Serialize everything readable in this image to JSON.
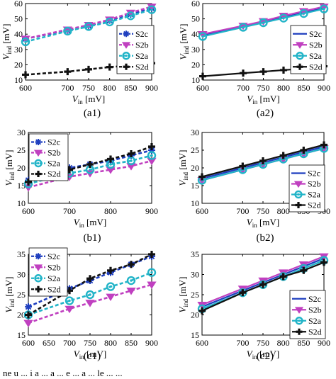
{
  "figure": {
    "panels": [
      "a1",
      "a2",
      "b1",
      "b2",
      "c1",
      "c2"
    ],
    "bottom_caption": "ne u ... i a ... a ... e ... a ... le ... ..."
  },
  "chart_data": [
    {
      "id": "a1",
      "caption": "(a1)",
      "type": "line",
      "x": [
        600,
        700,
        750,
        800,
        850,
        900
      ],
      "xlim": [
        600,
        900
      ],
      "ylim": [
        10,
        60
      ],
      "xticks": [
        600,
        700,
        750,
        800,
        850,
        900
      ],
      "yticks": [
        10,
        20,
        30,
        40,
        50,
        60
      ],
      "xlabel": {
        "main": "V",
        "sub": "in",
        "unit": " [mV]"
      },
      "ylabel": {
        "main": "V",
        "sub": "ind",
        "unit": " [mV]"
      },
      "style": "dashed",
      "grid": false,
      "legend_position": "right",
      "series": [
        {
          "name": "S2c",
          "color": "#1f3fbf",
          "marker": "asterisk",
          "values": [
            37,
            42.5,
            45.5,
            49,
            53,
            57
          ]
        },
        {
          "name": "S2b",
          "color": "#c040c0",
          "marker": "triangle-down",
          "values": [
            37,
            43,
            46,
            49.5,
            54,
            58
          ]
        },
        {
          "name": "S2a",
          "color": "#22b4c8",
          "marker": "circle",
          "values": [
            35,
            42,
            45,
            48,
            52,
            56
          ]
        },
        {
          "name": "S2d",
          "color": "#111111",
          "marker": "plus",
          "values": [
            13.5,
            15.5,
            17,
            18.5,
            19.5,
            21
          ]
        }
      ]
    },
    {
      "id": "a2",
      "caption": "(a2)",
      "type": "line",
      "x": [
        600,
        700,
        750,
        800,
        850,
        900
      ],
      "xlim": [
        600,
        900
      ],
      "ylim": [
        10,
        60
      ],
      "xticks": [
        600,
        700,
        750,
        800,
        850,
        900
      ],
      "yticks": [
        10,
        20,
        30,
        40,
        50,
        60
      ],
      "xlabel": {
        "main": "V",
        "sub": "in",
        "unit": " [mV]"
      },
      "ylabel": {
        "main": "V",
        "sub": "ind",
        "unit": " [mV]"
      },
      "style": "solid",
      "grid": false,
      "legend_position": "right",
      "series": [
        {
          "name": "S2c",
          "color": "#1f3fbf",
          "marker": "none",
          "values": [
            39,
            45,
            48,
            51,
            54,
            57
          ]
        },
        {
          "name": "S2b",
          "color": "#c040c0",
          "marker": "triangle-down",
          "values": [
            40,
            45.5,
            48.5,
            52,
            55,
            58
          ]
        },
        {
          "name": "S2a",
          "color": "#22b4c8",
          "marker": "circle",
          "values": [
            38.5,
            44.5,
            47.5,
            50.5,
            53.5,
            56.5
          ]
        },
        {
          "name": "S2d",
          "color": "#111111",
          "marker": "plus",
          "values": [
            12.5,
            14.5,
            15.5,
            16.5,
            17.5,
            19
          ]
        }
      ]
    },
    {
      "id": "b1",
      "caption": "(b1)",
      "type": "line",
      "x": [
        600,
        700,
        750,
        800,
        850,
        900
      ],
      "xlim": [
        600,
        900
      ],
      "ylim": [
        10,
        30
      ],
      "xticks": [
        600,
        700,
        800,
        900
      ],
      "yticks": [
        10,
        15,
        20,
        25,
        30
      ],
      "xlabel": {
        "main": "V",
        "sub": "in",
        "unit": " [mV]"
      },
      "ylabel": {
        "main": "V",
        "sub": "ind",
        "unit": " [mV]"
      },
      "style": "dashed",
      "grid": false,
      "legend_position": "top-left",
      "series": [
        {
          "name": "S2c",
          "color": "#1f3fbf",
          "marker": "asterisk",
          "values": [
            16.5,
            20,
            21,
            22,
            23.5,
            25
          ]
        },
        {
          "name": "S2b",
          "color": "#c040c0",
          "marker": "triangle-down",
          "values": [
            14.5,
            17.5,
            18.5,
            19.5,
            20.5,
            22
          ]
        },
        {
          "name": "S2a",
          "color": "#22b4c8",
          "marker": "circle",
          "values": [
            15.5,
            18.5,
            19.5,
            21,
            22,
            23.5
          ]
        },
        {
          "name": "S2d",
          "color": "#111111",
          "marker": "plus",
          "values": [
            16,
            19.5,
            21,
            22.5,
            24,
            26
          ]
        }
      ]
    },
    {
      "id": "b2",
      "caption": "(b2)",
      "type": "line",
      "x": [
        600,
        700,
        750,
        800,
        850,
        900
      ],
      "xlim": [
        600,
        900
      ],
      "ylim": [
        10,
        30
      ],
      "xticks": [
        600,
        700,
        750,
        800,
        850,
        900
      ],
      "yticks": [
        10,
        15,
        20,
        25,
        30
      ],
      "xlabel": {
        "main": "V",
        "sub": "in",
        "unit": " [mV]"
      },
      "ylabel": {
        "main": "V",
        "sub": "ind",
        "unit": " [mV]"
      },
      "style": "solid",
      "grid": false,
      "legend_position": "bottom-right",
      "series": [
        {
          "name": "S2c",
          "color": "#1f3fbf",
          "marker": "none",
          "values": [
            17,
            20,
            21.5,
            23,
            24.5,
            26
          ]
        },
        {
          "name": "S2b",
          "color": "#c040c0",
          "marker": "triangle-down",
          "values": [
            16.5,
            19.5,
            21,
            22.5,
            24,
            25.5
          ]
        },
        {
          "name": "S2a",
          "color": "#22b4c8",
          "marker": "circle",
          "values": [
            16.5,
            19.5,
            21,
            22.5,
            24,
            25.5
          ]
        },
        {
          "name": "S2d",
          "color": "#111111",
          "marker": "plus",
          "values": [
            17.5,
            20.5,
            22,
            23.5,
            25,
            26.5
          ]
        }
      ]
    },
    {
      "id": "c1",
      "caption": "(c1)",
      "type": "line",
      "x": [
        600,
        700,
        750,
        800,
        850,
        900
      ],
      "xlim": [
        600,
        900
      ],
      "ylim": [
        15,
        35
      ],
      "xticks": [
        600,
        650,
        700,
        750,
        800,
        850,
        900
      ],
      "yticks": [
        15,
        20,
        25,
        30,
        35
      ],
      "xlabel": {
        "main": "V",
        "sub": "in",
        "unit": " [mV]"
      },
      "ylabel": {
        "main": "V",
        "sub": "ind",
        "unit": " [mV]"
      },
      "style": "dashed",
      "grid": false,
      "legend_position": "top-left",
      "series": [
        {
          "name": "S2c",
          "color": "#1f3fbf",
          "marker": "asterisk",
          "values": [
            22,
            26.5,
            28.5,
            30.5,
            32.5,
            34.5
          ]
        },
        {
          "name": "S2b",
          "color": "#c040c0",
          "marker": "triangle-down",
          "values": [
            18,
            21.5,
            23,
            24.5,
            26,
            27.5
          ]
        },
        {
          "name": "S2a",
          "color": "#22b4c8",
          "marker": "circle",
          "values": [
            20,
            23.5,
            25,
            27,
            28.5,
            30.5
          ]
        },
        {
          "name": "S2d",
          "color": "#111111",
          "marker": "plus",
          "values": [
            20,
            26,
            29,
            31,
            32.5,
            35
          ]
        }
      ]
    },
    {
      "id": "c2",
      "caption": "(c2)",
      "type": "line",
      "x": [
        600,
        700,
        750,
        800,
        850,
        900
      ],
      "xlim": [
        600,
        900
      ],
      "ylim": [
        15,
        35
      ],
      "xticks": [
        600,
        700,
        750,
        800,
        850,
        900
      ],
      "yticks": [
        15,
        20,
        25,
        30,
        35
      ],
      "xlabel": {
        "main": "V",
        "sub": "in",
        "unit": " [mV]"
      },
      "ylabel": {
        "main": "V",
        "sub": "ind",
        "unit": " [mV]"
      },
      "style": "solid",
      "grid": false,
      "legend_position": "bottom-right",
      "series": [
        {
          "name": "S2c",
          "color": "#1f3fbf",
          "marker": "none",
          "values": [
            22,
            26,
            28,
            30,
            32,
            34
          ]
        },
        {
          "name": "S2b",
          "color": "#c040c0",
          "marker": "triangle-down",
          "values": [
            22.5,
            26.5,
            28.5,
            30.5,
            32.5,
            34.5
          ]
        },
        {
          "name": "S2a",
          "color": "#22b4c8",
          "marker": "circle",
          "values": [
            21.5,
            25.5,
            27.5,
            29.5,
            31.5,
            33.5
          ]
        },
        {
          "name": "S2d",
          "color": "#111111",
          "marker": "plus",
          "values": [
            21,
            25.5,
            27.5,
            29.5,
            31,
            33
          ]
        }
      ]
    }
  ]
}
